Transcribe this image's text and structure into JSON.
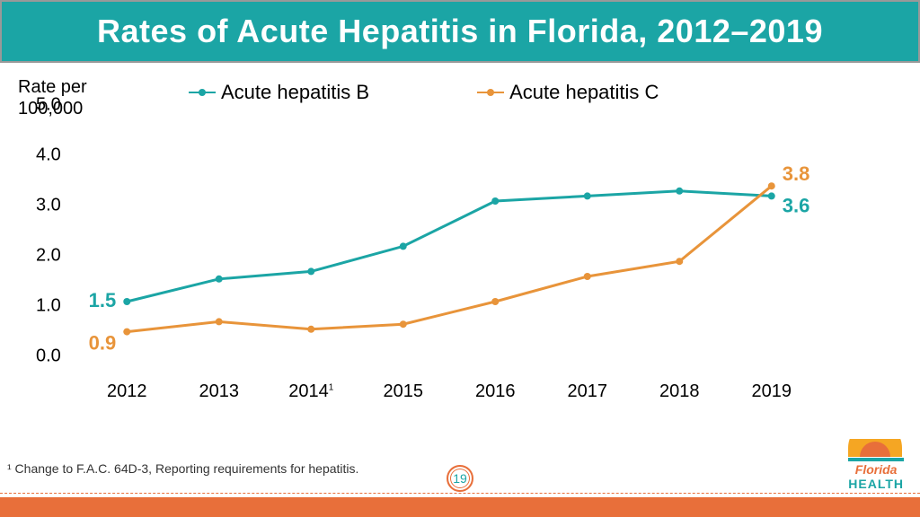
{
  "title": "Rates of Acute Hepatitis in Florida, 2012–2019",
  "chart": {
    "type": "line",
    "axis_title": "Rate per\n100,000",
    "ylim": [
      0,
      5
    ],
    "ytick_step": 1.0,
    "y_ticks": [
      "0.0",
      "1.0",
      "2.0",
      "3.0",
      "4.0",
      "5.0"
    ],
    "x_labels": [
      "2012",
      "2013",
      "2014",
      "2015",
      "2016",
      "2017",
      "2018",
      "2019"
    ],
    "x_superscript_index": 2,
    "series": [
      {
        "name": "Acute hepatitis B",
        "color": "#1ba5a5",
        "values": [
          1.5,
          1.95,
          2.1,
          2.6,
          3.5,
          3.6,
          3.7,
          3.6
        ],
        "start_label": "1.5",
        "end_label": "3.6"
      },
      {
        "name": "Acute hepatitis C",
        "color": "#e8943a",
        "values": [
          0.9,
          1.1,
          0.95,
          1.05,
          1.5,
          2.0,
          2.3,
          3.8
        ],
        "start_label": "0.9",
        "end_label": "3.8"
      }
    ],
    "line_width": 3,
    "marker_size": 8,
    "label_fontsize": 22,
    "tick_fontsize": 20,
    "background_color": "#ffffff"
  },
  "footnote": "¹ Change to F.A.C. 64D-3, Reporting requirements for hepatitis.",
  "page_number": "19",
  "logo": {
    "florida": "Florida",
    "health": "HEALTH"
  },
  "colors": {
    "header_bg": "#1ba5a5",
    "accent": "#e86f3a"
  }
}
